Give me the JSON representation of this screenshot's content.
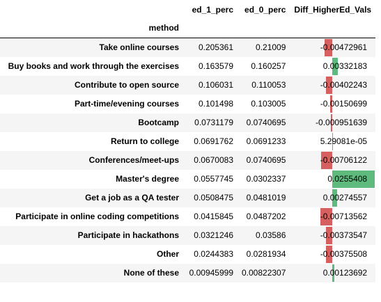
{
  "table": {
    "columns": [
      "ed_1_perc",
      "ed_0_perc",
      "Diff_HigherEd_Vals"
    ],
    "index_name": "method",
    "colors": {
      "negative": "#d65f5f",
      "positive": "#5fba7d"
    },
    "diff_max_abs": 0.0255408,
    "rows": [
      {
        "method": "Take online courses",
        "ed_1_perc": "0.205361",
        "ed_0_perc": "0.21009",
        "diff": "-0.00472961"
      },
      {
        "method": "Buy books and work through the exercises",
        "ed_1_perc": "0.163579",
        "ed_0_perc": "0.160257",
        "diff": "0.00332183"
      },
      {
        "method": "Contribute to open source",
        "ed_1_perc": "0.106031",
        "ed_0_perc": "0.110053",
        "diff": "-0.00402243"
      },
      {
        "method": "Part-time/evening courses",
        "ed_1_perc": "0.101498",
        "ed_0_perc": "0.103005",
        "diff": "-0.00150699"
      },
      {
        "method": "Bootcamp",
        "ed_1_perc": "0.0731179",
        "ed_0_perc": "0.0740695",
        "diff": "-0.000951639"
      },
      {
        "method": "Return to college",
        "ed_1_perc": "0.0691762",
        "ed_0_perc": "0.0691233",
        "diff": "5.29081e-05"
      },
      {
        "method": "Conferences/meet-ups",
        "ed_1_perc": "0.0670083",
        "ed_0_perc": "0.0740695",
        "diff": "-0.00706122"
      },
      {
        "method": "Master's degree",
        "ed_1_perc": "0.0557745",
        "ed_0_perc": "0.0302337",
        "diff": "0.0255408"
      },
      {
        "method": "Get a job as a QA tester",
        "ed_1_perc": "0.0508475",
        "ed_0_perc": "0.0481019",
        "diff": "0.00274557"
      },
      {
        "method": "Participate in online coding competitions",
        "ed_1_perc": "0.0415845",
        "ed_0_perc": "0.0487202",
        "diff": "-0.00713562"
      },
      {
        "method": "Participate in hackathons",
        "ed_1_perc": "0.0321246",
        "ed_0_perc": "0.03586",
        "diff": "-0.00373547"
      },
      {
        "method": "Other",
        "ed_1_perc": "0.0244383",
        "ed_0_perc": "0.0281934",
        "diff": "-0.00375508"
      },
      {
        "method": "None of these",
        "ed_1_perc": "0.00945999",
        "ed_0_perc": "0.00822307",
        "diff": "0.00123692"
      }
    ]
  }
}
